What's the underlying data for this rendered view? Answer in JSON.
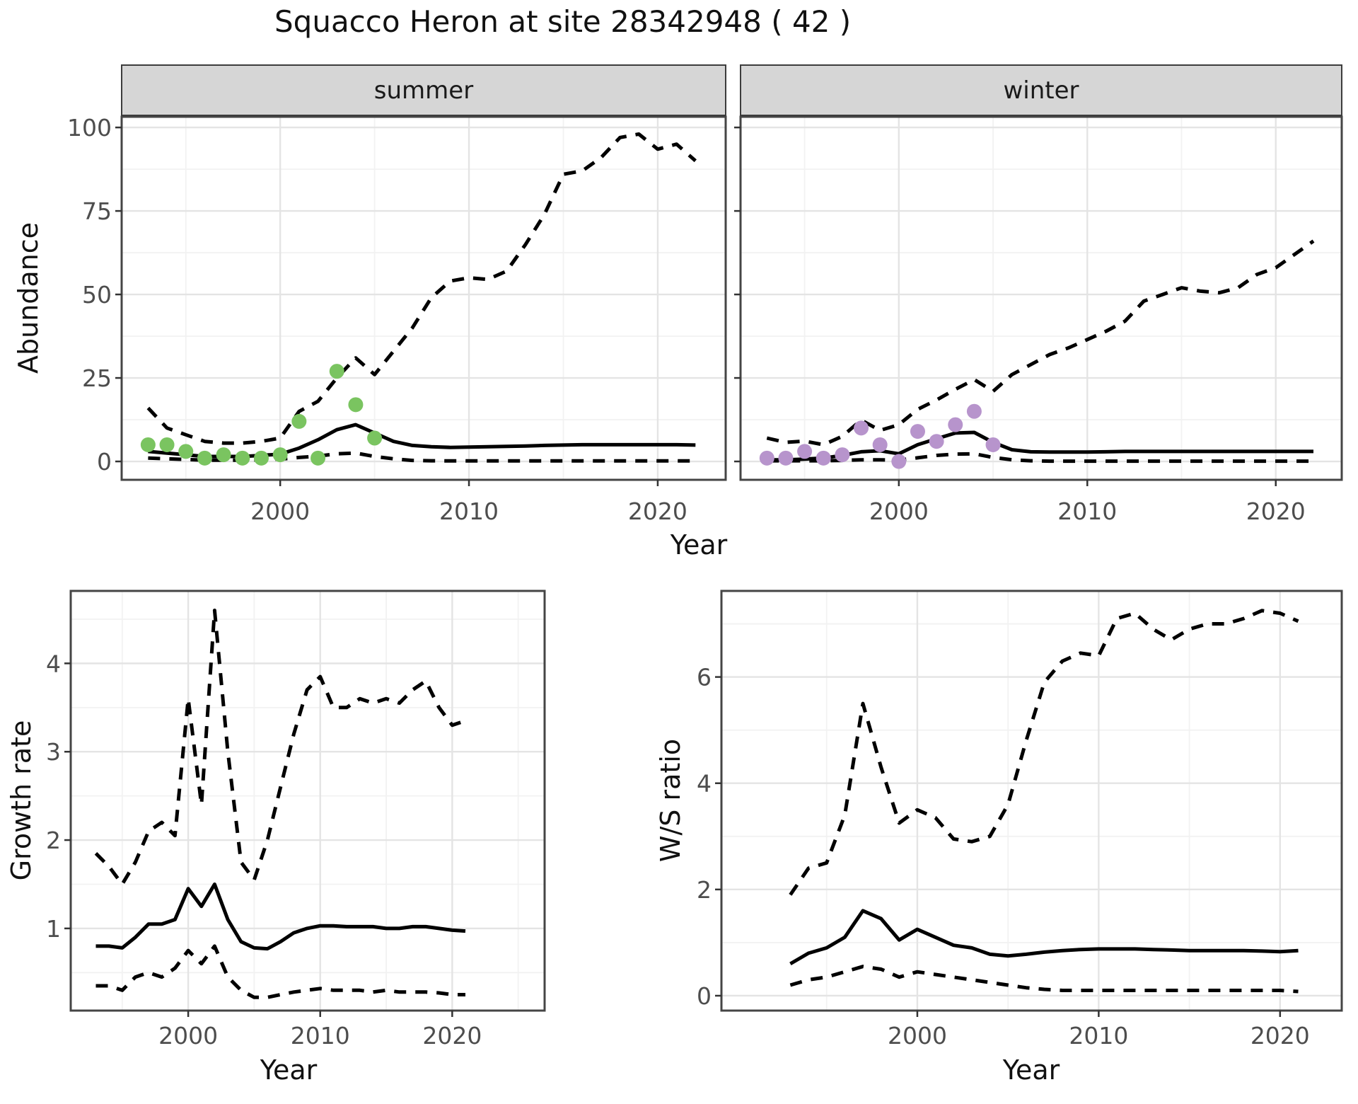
{
  "labels": {
    "title": "Squacco Heron at site 28342948 ( 42 )",
    "facet_summer": "summer",
    "facet_winter": "winter",
    "x_axis": "Year",
    "y_abundance": "Abundance",
    "y_growth": "Growth rate",
    "y_ws": "W/S ratio"
  },
  "colors": {
    "summer_point": "#7AC460",
    "winter_point": "#B794CC",
    "line": "#000000",
    "strip_bg": "#D6D6D6",
    "grid_major": "#E4E4E4",
    "grid_minor": "#F2F2F2",
    "panel_border": "#454545",
    "tick_mark": "#333333",
    "tick_text": "#4D4D4D"
  },
  "chart_data": [
    {
      "id": "abundance-summer",
      "type": "line",
      "facet": "summer",
      "xlabel": "Year",
      "ylabel": "Abundance",
      "x_ticks": [
        2000,
        2010,
        2020
      ],
      "y_ticks": [
        0,
        25,
        50,
        75,
        100
      ],
      "xlim": [
        1991.6,
        2023.6
      ],
      "ylim": [
        -5.5,
        103.2
      ],
      "point_color": "#7AC460",
      "obs_years": [
        1993,
        1994,
        1995,
        1996,
        1997,
        1998,
        1999,
        2000,
        2001,
        2002,
        2003,
        2004,
        2005
      ],
      "obs_values": [
        5,
        5,
        3,
        1,
        2,
        1,
        1,
        2,
        12,
        1,
        27,
        17,
        7
      ],
      "line_years": [
        1993,
        1994,
        1995,
        1996,
        1997,
        1998,
        1999,
        2000,
        2001,
        2002,
        2003,
        2004,
        2005,
        2006,
        2007,
        2008,
        2009,
        2010,
        2011,
        2012,
        2013,
        2014,
        2015,
        2016,
        2017,
        2018,
        2019,
        2020,
        2021,
        2022
      ],
      "series": [
        {
          "name": "upper95",
          "style": "dashed",
          "values": [
            16,
            10,
            8,
            6,
            5.5,
            5.5,
            6,
            7,
            15,
            18,
            25,
            31,
            26,
            33,
            40,
            49,
            54,
            55,
            54.5,
            57,
            65,
            74,
            86,
            87,
            91,
            97,
            98,
            93.5,
            95,
            90
          ]
        },
        {
          "name": "lower95",
          "style": "dashed",
          "values": [
            1,
            0.8,
            0.6,
            0.4,
            0.4,
            0.4,
            0.5,
            0.7,
            1.2,
            1.6,
            2.3,
            2.5,
            1.5,
            0.8,
            0.3,
            0.2,
            0.15,
            0.15,
            0.15,
            0.15,
            0.15,
            0.15,
            0.15,
            0.15,
            0.15,
            0.15,
            0.15,
            0.15,
            0.15,
            0.15
          ]
        },
        {
          "name": "median",
          "style": "solid",
          "values": [
            3,
            2.5,
            2,
            1.5,
            1.5,
            1.5,
            1.8,
            2.2,
            4,
            6.5,
            9.5,
            11,
            8.5,
            6,
            4.8,
            4.4,
            4.2,
            4.3,
            4.4,
            4.5,
            4.6,
            4.8,
            4.9,
            5,
            5,
            5,
            5,
            5,
            5,
            4.9
          ]
        }
      ]
    },
    {
      "id": "abundance-winter",
      "type": "line",
      "facet": "winter",
      "xlabel": "Year",
      "ylabel": "Abundance",
      "x_ticks": [
        2000,
        2010,
        2020
      ],
      "y_ticks": [
        0,
        25,
        50,
        75,
        100
      ],
      "xlim": [
        1991.6,
        2023.5
      ],
      "ylim": [
        -5.5,
        103.2
      ],
      "point_color": "#B794CC",
      "obs_years": [
        1993,
        1994,
        1995,
        1996,
        1997,
        1998,
        1999,
        2000,
        2001,
        2002,
        2003,
        2004,
        2005
      ],
      "obs_values": [
        1,
        1,
        3,
        1,
        2,
        10,
        5,
        0,
        9,
        6,
        11,
        15,
        5
      ],
      "line_years": [
        1993,
        1994,
        1995,
        1996,
        1997,
        1998,
        1999,
        2000,
        2001,
        2002,
        2003,
        2004,
        2005,
        2006,
        2007,
        2008,
        2009,
        2010,
        2011,
        2012,
        2013,
        2014,
        2015,
        2016,
        2017,
        2018,
        2019,
        2020,
        2021,
        2022
      ],
      "series": [
        {
          "name": "upper95",
          "style": "dashed",
          "values": [
            7,
            5.7,
            6.1,
            5,
            7.5,
            12.4,
            9.3,
            11,
            15.6,
            18.4,
            21.6,
            24.5,
            21,
            26,
            29,
            32,
            34,
            36.5,
            39,
            42,
            48,
            50,
            52,
            51,
            50.5,
            52,
            56,
            58,
            62,
            66
          ]
        },
        {
          "name": "lower95",
          "style": "dashed",
          "values": [
            0.2,
            0.2,
            0.2,
            0.2,
            0.3,
            0.5,
            0.5,
            0.4,
            1.1,
            1.8,
            2.2,
            2.3,
            1.2,
            0.5,
            0.2,
            0.1,
            0.1,
            0.1,
            0.1,
            0.1,
            0.1,
            0.1,
            0.1,
            0.1,
            0.1,
            0.1,
            0.1,
            0.1,
            0.1,
            0.1
          ]
        },
        {
          "name": "median",
          "style": "solid",
          "values": [
            0.5,
            0.5,
            0.7,
            1,
            1.8,
            2.9,
            3.2,
            2.3,
            5,
            6.8,
            8.5,
            8.7,
            5.7,
            3.5,
            2.9,
            2.8,
            2.8,
            2.8,
            2.9,
            3,
            3,
            3,
            3,
            3,
            3,
            3,
            3,
            3,
            3,
            3
          ]
        }
      ]
    },
    {
      "id": "growth-rate",
      "type": "line",
      "xlabel": "Year",
      "ylabel": "Growth rate",
      "x_ticks": [
        2000,
        2010,
        2020
      ],
      "y_ticks": [
        1,
        2,
        3,
        4
      ],
      "xlim": [
        1991.1,
        2027.0
      ],
      "ylim": [
        0.07,
        4.82
      ],
      "line_years": [
        1993,
        1994,
        1995,
        1996,
        1997,
        1998,
        1999,
        2000,
        2001,
        2002,
        2003,
        2004,
        2005,
        2006,
        2007,
        2008,
        2009,
        2010,
        2011,
        2012,
        2013,
        2014,
        2015,
        2016,
        2017,
        2018,
        2019,
        2020,
        2021
      ],
      "series": [
        {
          "name": "upper95",
          "style": "dashed",
          "values": [
            1.85,
            1.7,
            1.5,
            1.75,
            2.1,
            2.2,
            2.05,
            3.6,
            2.4,
            4.6,
            3.0,
            1.75,
            1.55,
            2.0,
            2.6,
            3.2,
            3.7,
            3.85,
            3.5,
            3.5,
            3.6,
            3.55,
            3.6,
            3.55,
            3.7,
            3.8,
            3.5,
            3.3,
            3.35
          ]
        },
        {
          "name": "lower95",
          "style": "dashed",
          "values": [
            0.35,
            0.35,
            0.3,
            0.45,
            0.5,
            0.45,
            0.55,
            0.75,
            0.6,
            0.8,
            0.45,
            0.3,
            0.22,
            0.22,
            0.25,
            0.28,
            0.3,
            0.32,
            0.3,
            0.3,
            0.3,
            0.28,
            0.3,
            0.28,
            0.28,
            0.28,
            0.27,
            0.25,
            0.25
          ]
        },
        {
          "name": "median",
          "style": "solid",
          "values": [
            0.8,
            0.8,
            0.78,
            0.9,
            1.05,
            1.05,
            1.1,
            1.45,
            1.25,
            1.5,
            1.1,
            0.85,
            0.78,
            0.77,
            0.85,
            0.95,
            1.0,
            1.03,
            1.03,
            1.02,
            1.02,
            1.02,
            1.0,
            1.0,
            1.02,
            1.02,
            1.0,
            0.98,
            0.97
          ]
        }
      ]
    },
    {
      "id": "ws-ratio",
      "type": "line",
      "xlabel": "Year",
      "ylabel": "W/S ratio",
      "x_ticks": [
        2000,
        2010,
        2020
      ],
      "y_ticks": [
        0,
        2,
        4,
        6
      ],
      "xlim": [
        1989.2,
        2023.4
      ],
      "ylim": [
        -0.28,
        7.62
      ],
      "line_years": [
        1993,
        1994,
        1995,
        1996,
        1997,
        1998,
        1999,
        2000,
        2001,
        2002,
        2003,
        2004,
        2005,
        2006,
        2007,
        2008,
        2009,
        2010,
        2011,
        2012,
        2013,
        2014,
        2015,
        2016,
        2017,
        2018,
        2019,
        2020,
        2021
      ],
      "series": [
        {
          "name": "upper95",
          "style": "dashed",
          "values": [
            1.9,
            2.4,
            2.5,
            3.4,
            5.5,
            4.3,
            3.25,
            3.5,
            3.35,
            2.95,
            2.9,
            3.0,
            3.6,
            4.8,
            5.9,
            6.3,
            6.45,
            6.4,
            7.1,
            7.2,
            6.9,
            6.7,
            6.9,
            7.0,
            7.0,
            7.1,
            7.25,
            7.2,
            7.05
          ]
        },
        {
          "name": "lower95",
          "style": "dashed",
          "values": [
            0.2,
            0.3,
            0.35,
            0.45,
            0.55,
            0.5,
            0.35,
            0.45,
            0.4,
            0.35,
            0.3,
            0.25,
            0.2,
            0.15,
            0.12,
            0.1,
            0.1,
            0.1,
            0.1,
            0.1,
            0.1,
            0.1,
            0.1,
            0.1,
            0.1,
            0.1,
            0.1,
            0.1,
            0.08
          ]
        },
        {
          "name": "median",
          "style": "solid",
          "values": [
            0.6,
            0.8,
            0.9,
            1.1,
            1.6,
            1.45,
            1.05,
            1.25,
            1.1,
            0.95,
            0.9,
            0.78,
            0.75,
            0.78,
            0.82,
            0.85,
            0.87,
            0.88,
            0.88,
            0.88,
            0.87,
            0.86,
            0.85,
            0.85,
            0.85,
            0.85,
            0.84,
            0.83,
            0.85
          ]
        }
      ]
    }
  ]
}
